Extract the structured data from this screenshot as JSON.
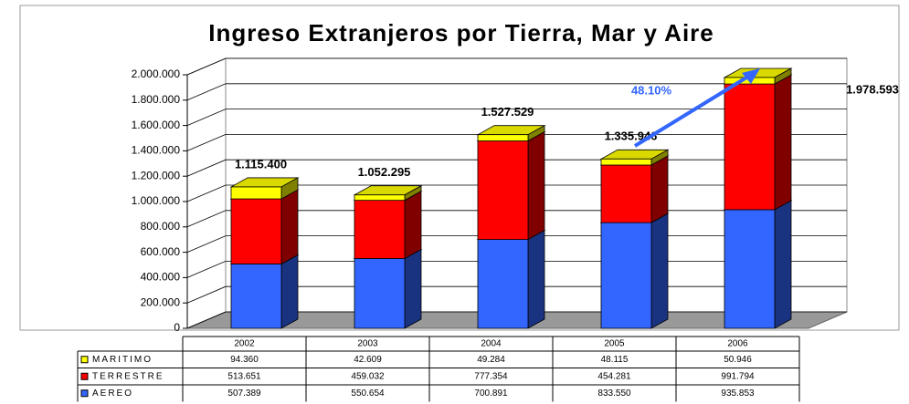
{
  "chart_data": {
    "type": "bar3d_stacked",
    "title": "Ingreso Extranjeros por Tierra, Mar y Aire",
    "categories": [
      "2002",
      "2003",
      "2004",
      "2005",
      "2006"
    ],
    "series": [
      {
        "name": "MARITIMO",
        "color": "#ffff00",
        "values": [
          94360,
          42609,
          49284,
          48115,
          50946
        ],
        "value_labels": [
          "94.360",
          "42.609",
          "49.284",
          "48.115",
          "50.946"
        ]
      },
      {
        "name": "TERRESTRE",
        "color": "#ff0000",
        "values": [
          513651,
          459032,
          777354,
          454281,
          991794
        ],
        "value_labels": [
          "513.651",
          "459.032",
          "777.354",
          "454.281",
          "991.794"
        ]
      },
      {
        "name": "AEREO",
        "color": "#3366ff",
        "values": [
          507389,
          550654,
          700891,
          833550,
          935853
        ],
        "value_labels": [
          "507.389",
          "550.654",
          "700.891",
          "833.550",
          "935.853"
        ]
      }
    ],
    "total_labels": [
      "1.115.400",
      "1.052.295",
      "1.527.529",
      "1.335.946",
      "1.978.593"
    ],
    "annotation": "48.10%",
    "ylim": [
      0,
      2000000
    ],
    "yticks": [
      0,
      {
        "value": 200000,
        "label": "200.000"
      },
      {
        "value": 400000,
        "label": "400.000"
      },
      {
        "value": 600000,
        "label": "600.000"
      },
      {
        "value": 800000,
        "label": "800.000"
      },
      {
        "value": 1000000,
        "label": "1.000.000"
      },
      {
        "value": 1200000,
        "label": "1.200.000"
      },
      {
        "value": 1400000,
        "label": "1.400.000"
      },
      {
        "value": 1600000,
        "label": "1.600.000"
      },
      {
        "value": 1800000,
        "label": "1.800.000"
      },
      {
        "value": 2000000,
        "label": "2.000.000"
      }
    ],
    "grid": true
  }
}
